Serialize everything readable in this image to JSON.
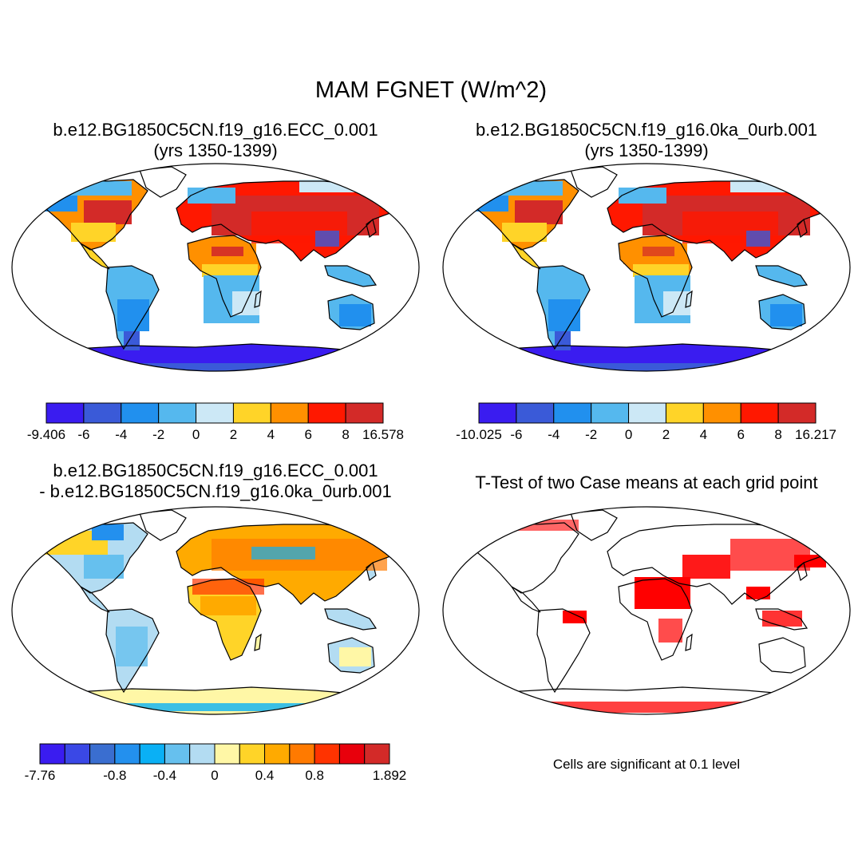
{
  "main_title": "MAM FGNET (W/m^2)",
  "panels": [
    {
      "title_line1": "b.e12.BG1850C5CN.f19_g16.ECC_0.001",
      "title_line2": "(yrs 1350-1399)"
    },
    {
      "title_line1": "b.e12.BG1850C5CN.f19_g16.0ka_0urb.001",
      "title_line2": "(yrs 1350-1399)"
    },
    {
      "title_line1": "b.e12.BG1850C5CN.f19_g16.ECC_0.001",
      "title_line2": "- b.e12.BG1850C5CN.f19_g16.0ka_0urb.001"
    },
    {
      "title_line1": "T-Test of two Case means at each grid point",
      "note": "Cells are significant at 0.1 level"
    }
  ],
  "chart_data": [
    {
      "type": "heatmap",
      "title": "b.e12.BG1850C5CN.f19_g16.ECC_0.001 (yrs 1350-1399)",
      "projection": "Robinson, global",
      "colorbar": {
        "colors": [
          "#3a1cf0",
          "#3a5ad8",
          "#2190ee",
          "#55b8ee",
          "#cce8f6",
          "#ffd428",
          "#ff9000",
          "#ff1800",
          "#d32a28"
        ],
        "labels": [
          "-9.406",
          "-6",
          "-4",
          "-2",
          "0",
          "2",
          "4",
          "6",
          "8",
          "16.578"
        ]
      }
    },
    {
      "type": "heatmap",
      "title": "b.e12.BG1850C5CN.f19_g16.0ka_0urb.001 (yrs 1350-1399)",
      "projection": "Robinson, global",
      "colorbar": {
        "colors": [
          "#3a1cf0",
          "#3a5ad8",
          "#2190ee",
          "#55b8ee",
          "#cce8f6",
          "#ffd428",
          "#ff9000",
          "#ff1800",
          "#d32a28"
        ],
        "labels": [
          "-10.025",
          "-6",
          "-4",
          "-2",
          "0",
          "2",
          "4",
          "6",
          "8",
          "16.217"
        ]
      }
    },
    {
      "type": "heatmap",
      "title": "b.e12.BG1850C5CN.f19_g16.ECC_0.001 - b.e12.BG1850C5CN.f19_g16.0ka_0urb.001",
      "projection": "Robinson, global",
      "colorbar": {
        "colors": [
          "#3a1cf0",
          "#3a48e6",
          "#3a6ed0",
          "#2390ee",
          "#0ab0f5",
          "#66c0ee",
          "#b3dcf2",
          "#fff7a6",
          "#ffd428",
          "#ffaa00",
          "#ff7a00",
          "#ff3300",
          "#e8000c",
          "#d32a28"
        ],
        "labels": [
          "-7.76",
          "-0.8",
          "-0.4",
          "0",
          "0.4",
          "0.8",
          "1.892"
        ]
      }
    },
    {
      "type": "heatmap",
      "title": "T-Test of two Case means at each grid point",
      "projection": "Robinson, global",
      "significance_level": 0.1,
      "significant_color": "#ff0000"
    }
  ]
}
